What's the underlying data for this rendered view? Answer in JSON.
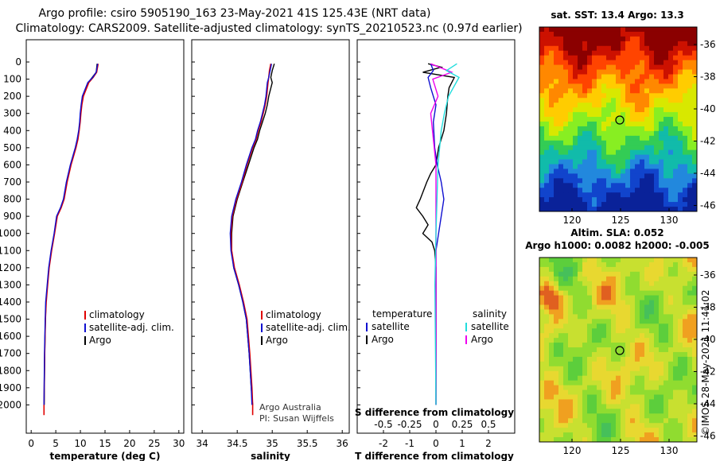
{
  "header": {
    "title_line1": "Argo profile: csiro 5905190_163 23-May-2021 41S 125.43E (NRT data)",
    "title_line2": "Climatology: CARS2009. Satellite-adjusted climatology: synTS_20210523.nc (0.97d earlier)"
  },
  "side_stamp": "©IMOS 28-May-2021 11:41:02",
  "credit": {
    "line1": "Argo Australia",
    "line2": "PI: Susan Wijffels"
  },
  "colors": {
    "argo": "#000000",
    "climatology": "#e00000",
    "satellite_t": "#1010d0",
    "salinity_diff": "#ee00ee",
    "salinity_satellite": "#22dddd"
  },
  "chart_data": [
    {
      "type": "line",
      "id": "temperature",
      "xlabel": "temperature (deg C)",
      "ylim": [
        0,
        2100
      ],
      "xlim": [
        -1,
        31
      ],
      "xticks": [
        "0",
        "5",
        "10",
        "15",
        "20",
        "25",
        "30"
      ],
      "xtick_values": [
        0,
        5,
        10,
        15,
        20,
        25,
        30
      ],
      "yticks": [
        "0",
        "100",
        "200",
        "300",
        "400",
        "500",
        "600",
        "700",
        "800",
        "900",
        "1000",
        "1100",
        "1200",
        "1300",
        "1400",
        "1500",
        "1600",
        "1700",
        "1800",
        "1900",
        "2000"
      ],
      "legend": [
        "climatology",
        "satellite-adj. clim.",
        "Argo"
      ],
      "series": [
        {
          "name": "Argo",
          "x": [
            13.4,
            13.2,
            12.4,
            11.6,
            10.5,
            10.2,
            10.0,
            9.9,
            9.7,
            9.4,
            9.0,
            8.5,
            8.0,
            7.2,
            6.6,
            6.0,
            5.2,
            4.7,
            4.1,
            3.6,
            3.3,
            3.0,
            2.9,
            2.75,
            2.65
          ],
          "y": [
            10,
            60,
            90,
            120,
            200,
            250,
            300,
            350,
            400,
            450,
            500,
            550,
            600,
            700,
            800,
            850,
            900,
            1000,
            1100,
            1200,
            1300,
            1400,
            1500,
            1700,
            2000
          ]
        },
        {
          "name": "climatology",
          "x": [
            13.6,
            13.3,
            12.6,
            11.7,
            10.6,
            10.3,
            10.1,
            9.95,
            9.75,
            9.5,
            9.1,
            8.6,
            8.1,
            7.3,
            6.7,
            6.1,
            5.3,
            4.75,
            4.15,
            3.65,
            3.35,
            3.05,
            2.9,
            2.75,
            2.6,
            2.6
          ],
          "y": [
            10,
            60,
            90,
            120,
            200,
            250,
            300,
            350,
            400,
            450,
            500,
            550,
            600,
            700,
            800,
            850,
            900,
            1000,
            1100,
            1200,
            1300,
            1400,
            1500,
            1700,
            2000,
            2060
          ]
        },
        {
          "name": "satellite-adj. clim.",
          "x": [
            13.5,
            13.2,
            12.5,
            11.5,
            10.4,
            10.15,
            9.95,
            9.85,
            9.65,
            9.35,
            8.95,
            8.45,
            7.95,
            7.15,
            6.55,
            5.95,
            5.15,
            4.65,
            4.05,
            3.55,
            3.25,
            2.95,
            2.85,
            2.7,
            2.6
          ],
          "y": [
            10,
            60,
            90,
            120,
            200,
            250,
            300,
            350,
            400,
            450,
            500,
            550,
            600,
            700,
            800,
            850,
            900,
            1000,
            1100,
            1200,
            1300,
            1400,
            1500,
            1700,
            2000
          ]
        }
      ]
    },
    {
      "type": "line",
      "id": "salinity",
      "xlabel": "salinity",
      "ylim": [
        0,
        2100
      ],
      "xlim": [
        33.85,
        36.1
      ],
      "xticks": [
        "34",
        "34.5",
        "35",
        "35.5",
        "36"
      ],
      "xtick_values": [
        34,
        34.5,
        35,
        35.5,
        36
      ],
      "legend": [
        "climatology",
        "satellite-adj. clim.",
        "Argo"
      ],
      "series": [
        {
          "name": "Argo",
          "x": [
            35.03,
            35.0,
            34.98,
            35.0,
            34.95,
            34.93,
            34.9,
            34.86,
            34.82,
            34.79,
            34.74,
            34.66,
            34.58,
            34.5,
            34.44,
            34.42,
            34.42,
            34.45,
            34.52,
            34.58,
            34.63,
            34.67,
            34.7,
            34.72
          ],
          "y": [
            10,
            50,
            90,
            120,
            200,
            250,
            300,
            350,
            400,
            450,
            500,
            600,
            700,
            800,
            900,
            1000,
            1100,
            1200,
            1300,
            1400,
            1500,
            1700,
            1900,
            2000
          ]
        },
        {
          "name": "climatology",
          "x": [
            34.98,
            34.96,
            34.95,
            34.94,
            34.92,
            34.9,
            34.87,
            34.84,
            34.8,
            34.77,
            34.72,
            34.64,
            34.57,
            34.49,
            34.43,
            34.41,
            34.42,
            34.46,
            34.53,
            34.59,
            34.64,
            34.68,
            34.71,
            34.72,
            34.72
          ],
          "y": [
            10,
            50,
            90,
            120,
            200,
            250,
            300,
            350,
            400,
            450,
            500,
            600,
            700,
            800,
            900,
            1000,
            1100,
            1200,
            1300,
            1400,
            1500,
            1700,
            1900,
            2000,
            2060
          ]
        },
        {
          "name": "satellite-adj. clim.",
          "x": [
            34.99,
            34.97,
            34.95,
            34.93,
            34.91,
            34.89,
            34.86,
            34.83,
            34.79,
            34.76,
            34.71,
            34.63,
            34.56,
            34.48,
            34.42,
            34.4,
            34.41,
            34.45,
            34.52,
            34.58,
            34.63,
            34.67,
            34.7,
            34.71
          ],
          "y": [
            10,
            50,
            90,
            120,
            200,
            250,
            300,
            350,
            400,
            450,
            500,
            600,
            700,
            800,
            900,
            1000,
            1100,
            1200,
            1300,
            1400,
            1500,
            1700,
            1900,
            2000
          ]
        }
      ]
    },
    {
      "type": "line",
      "id": "difference",
      "xlabel": "T difference from climatology",
      "xlabel_top": "S difference from climatology",
      "ylim": [
        0,
        2100
      ],
      "xlim": [
        -3,
        3
      ],
      "xticks": [
        "-2",
        "-1",
        "0",
        "1",
        "2"
      ],
      "xtick_values": [
        -2,
        -1,
        0,
        1,
        2
      ],
      "top_xticks": [
        "-0.5",
        "-0.25",
        "0",
        "0.25",
        "0.5"
      ],
      "top_xtick_values": [
        -0.5,
        -0.25,
        0,
        0.25,
        0.5
      ],
      "legend": {
        "temperature_heading": "temperature",
        "salinity_heading": "salinity",
        "t_satellite": "satellite",
        "t_argo": "Argo",
        "s_satellite": "satellite",
        "s_argo": "Argo"
      },
      "series": [
        {
          "name": "temperature Argo",
          "x": [
            -0.3,
            0.2,
            -0.5,
            0.7,
            0.5,
            0.45,
            0.4,
            0.3,
            0.1,
            0.0,
            -0.2,
            -0.35,
            -0.6,
            -0.75,
            -0.5,
            -0.3,
            -0.5,
            -0.15,
            -0.05,
            0.0,
            0.0,
            0.0,
            0.0
          ],
          "y": [
            10,
            30,
            60,
            90,
            150,
            200,
            300,
            400,
            500,
            600,
            650,
            700,
            800,
            850,
            900,
            950,
            1000,
            1050,
            1100,
            1200,
            1400,
            1700,
            2000
          ]
        },
        {
          "name": "temperature satellite",
          "x": [
            -0.2,
            -0.1,
            -0.3,
            -0.2,
            0.0,
            -0.1,
            -0.05,
            0.05,
            0.2,
            0.3,
            0.2,
            0.1,
            0.0,
            0.0,
            0.0
          ],
          "y": [
            10,
            50,
            90,
            150,
            250,
            350,
            500,
            600,
            700,
            800,
            900,
            1000,
            1100,
            1400,
            2000
          ]
        },
        {
          "name": "salinity Argo",
          "x": [
            -0.05,
            0.15,
            -0.03,
            0.02,
            -0.05,
            0.0,
            0.0,
            0.0,
            0.0,
            0.0
          ],
          "y": [
            10,
            60,
            100,
            200,
            300,
            600,
            900,
            1200,
            1600,
            2000
          ]
        },
        {
          "name": "salinity satellite",
          "x": [
            0.2,
            0.1,
            0.22,
            0.12,
            0.08,
            0.05,
            0.02,
            0.0,
            -0.01,
            0.0
          ],
          "y": [
            10,
            50,
            90,
            200,
            300,
            400,
            600,
            1000,
            1300,
            2000
          ]
        }
      ]
    }
  ],
  "maps": [
    {
      "id": "sst-map",
      "label": "sat. SST: 13.4 Argo: 13.3",
      "colors": [
        "#8b0000",
        "#cc1100",
        "#ff4400",
        "#ff8800",
        "#ffcc00",
        "#d8e800",
        "#88ee22",
        "#33cc55",
        "#11bbaa",
        "#2288dd",
        "#1144cc",
        "#0a2299"
      ],
      "yticks": [
        "-36",
        "-38",
        "-40",
        "-42",
        "-44",
        "-46"
      ],
      "xticks": [
        "120",
        "125",
        "130"
      ]
    },
    {
      "id": "sla-map",
      "label_line1": "Altim. SLA: 0.052",
      "label_line2": "Argo h1000: 0.0082 h2000: -0.005",
      "colors": [
        "#e06020",
        "#f0a020",
        "#e8d830",
        "#c8e030",
        "#90dc30",
        "#5cce3c",
        "#46c05a",
        "#35ad6a"
      ],
      "yticks": [
        "-36",
        "-38",
        "-40",
        "-42",
        "-44",
        "-46"
      ],
      "xticks": [
        "120",
        "125",
        "130"
      ]
    }
  ]
}
